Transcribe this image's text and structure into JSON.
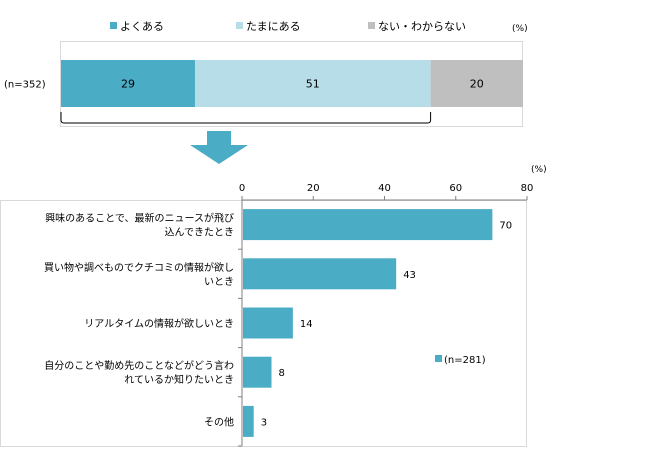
{
  "chart_data": [
    {
      "type": "bar",
      "orientation": "horizontal",
      "stacked": true,
      "unit": "(%)",
      "categories": [
        "(n=352)"
      ],
      "series": [
        {
          "name": "よくある",
          "values": [
            29
          ],
          "color": "#4bacc6"
        },
        {
          "name": "たまにある",
          "values": [
            51
          ],
          "color": "#b7dee8"
        },
        {
          "name": "ない・わからない",
          "values": [
            20
          ],
          "color": "#bfbfbf"
        }
      ],
      "legend_position": "top"
    },
    {
      "type": "bar",
      "orientation": "horizontal",
      "unit": "(%)",
      "categories": [
        [
          "興味のあることで、最新のニュースが飛び",
          "込んできたとき"
        ],
        [
          "買い物や調べものでクチコミの情報が欲し",
          "いとき"
        ],
        [
          "リアルタイムの情報が欲しいとき"
        ],
        [
          "自分のことや勤め先のことなどがどう言わ",
          "れているか知りたいとき"
        ],
        [
          "その他"
        ]
      ],
      "series": [
        {
          "name": "(n=281)",
          "values": [
            70,
            43,
            14,
            8,
            3
          ],
          "color": "#4bacc6"
        }
      ],
      "xlim": [
        0,
        80
      ],
      "ticks": [
        0,
        20,
        40,
        60,
        80
      ],
      "grid": false,
      "legend_position": "right"
    }
  ]
}
